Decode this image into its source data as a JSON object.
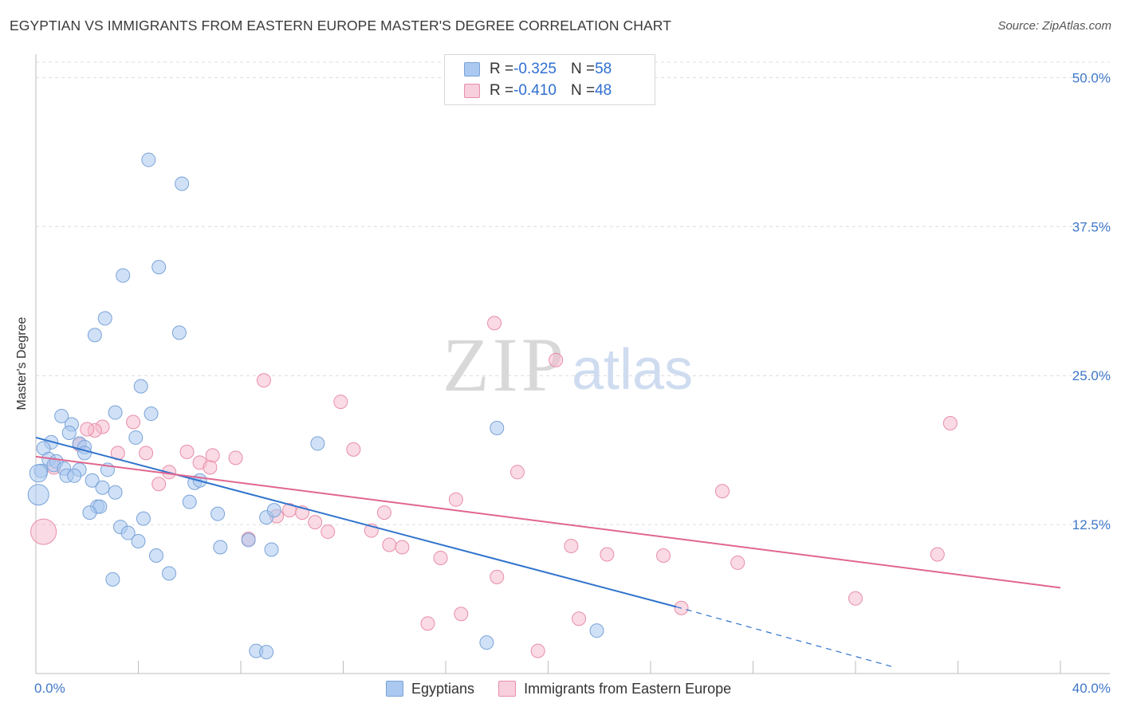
{
  "header": {
    "title": "EGYPTIAN VS IMMIGRANTS FROM EASTERN EUROPE MASTER'S DEGREE CORRELATION CHART",
    "source": "Source: ZipAtlas.com"
  },
  "watermark": {
    "zip": "ZIP",
    "atlas": "atlas"
  },
  "legend": {
    "rows": [
      {
        "r_label": "R = ",
        "r_value": "-0.325",
        "n_label": "N = ",
        "n_value": "58"
      },
      {
        "r_label": "R = ",
        "r_value": "-0.410",
        "n_label": "N = ",
        "n_value": "48"
      }
    ]
  },
  "colors": {
    "blue_fill": "#aac8f0",
    "blue_stroke": "#7aa3d8",
    "blue_line": "#2f73cc",
    "pink_fill": "#f5bccd",
    "pink_stroke": "#e88ea8",
    "pink_line": "#e0668e",
    "tick_label": "#3f78c9",
    "grid": "#dcdcdc"
  },
  "chart_data": {
    "type": "scatter",
    "title": "EGYPTIAN VS IMMIGRANTS FROM EASTERN EUROPE MASTER'S DEGREE CORRELATION CHART",
    "xlabel": "",
    "ylabel": "Master's Degree",
    "xlim": [
      0,
      40
    ],
    "ylim": [
      0,
      50
    ],
    "x_tick_labels": [
      "0.0%",
      "40.0%"
    ],
    "y_ticks": [
      12.5,
      25.0,
      37.5,
      50.0
    ],
    "y_tick_labels": [
      "12.5%",
      "25.0%",
      "37.5%",
      "50.0%"
    ],
    "grid": true,
    "legend_position": "top-center",
    "series": [
      {
        "name": "Egyptians",
        "r": -0.325,
        "n": 58,
        "trend": {
          "x": [
            0,
            25
          ],
          "y": [
            19.8,
            5.6
          ],
          "dashed_to": [
            33.4,
            0.6
          ]
        },
        "points": [
          [
            4.4,
            43.1
          ],
          [
            5.7,
            41.1
          ],
          [
            4.8,
            34.1
          ],
          [
            3.4,
            33.4
          ],
          [
            2.7,
            29.8
          ],
          [
            2.3,
            28.4
          ],
          [
            5.6,
            28.6
          ],
          [
            4.1,
            24.1
          ],
          [
            3.1,
            21.9
          ],
          [
            4.5,
            21.8
          ],
          [
            1.0,
            21.6
          ],
          [
            1.4,
            20.9
          ],
          [
            1.3,
            20.2
          ],
          [
            0.6,
            19.4
          ],
          [
            1.7,
            19.3
          ],
          [
            1.9,
            19.0
          ],
          [
            0.3,
            18.9
          ],
          [
            3.9,
            19.8
          ],
          [
            0.5,
            18.0
          ],
          [
            0.8,
            17.8
          ],
          [
            1.9,
            18.5
          ],
          [
            0.7,
            17.5
          ],
          [
            1.1,
            17.2
          ],
          [
            1.7,
            17.1
          ],
          [
            2.8,
            17.1
          ],
          [
            0.2,
            17.0
          ],
          [
            1.2,
            16.6
          ],
          [
            1.5,
            16.6
          ],
          [
            2.2,
            16.2
          ],
          [
            6.2,
            16.0
          ],
          [
            6.4,
            16.2
          ],
          [
            2.6,
            15.6
          ],
          [
            3.1,
            15.2
          ],
          [
            0.1,
            15.0
          ],
          [
            6.0,
            14.4
          ],
          [
            2.4,
            14.0
          ],
          [
            2.5,
            14.0
          ],
          [
            2.1,
            13.5
          ],
          [
            7.1,
            13.4
          ],
          [
            4.2,
            13.0
          ],
          [
            9.0,
            13.1
          ],
          [
            9.3,
            13.7
          ],
          [
            11.0,
            19.3
          ],
          [
            3.3,
            12.3
          ],
          [
            3.6,
            11.8
          ],
          [
            4.0,
            11.1
          ],
          [
            8.3,
            11.2
          ],
          [
            7.2,
            10.6
          ],
          [
            9.2,
            10.4
          ],
          [
            4.7,
            9.9
          ],
          [
            5.2,
            8.4
          ],
          [
            3.0,
            7.9
          ],
          [
            18.0,
            20.6
          ],
          [
            21.9,
            3.6
          ],
          [
            8.6,
            1.9
          ],
          [
            9.0,
            1.8
          ],
          [
            17.6,
            2.6
          ],
          [
            0.1,
            16.8
          ]
        ]
      },
      {
        "name": "Immigrants from Eastern Europe",
        "r": -0.41,
        "n": 48,
        "trend": {
          "x": [
            0,
            40
          ],
          "y": [
            18.2,
            7.2
          ]
        },
        "points": [
          [
            17.9,
            29.4
          ],
          [
            20.3,
            26.3
          ],
          [
            8.9,
            24.6
          ],
          [
            11.9,
            22.8
          ],
          [
            3.8,
            21.1
          ],
          [
            35.7,
            21.0
          ],
          [
            2.6,
            20.7
          ],
          [
            2.3,
            20.4
          ],
          [
            2.0,
            20.5
          ],
          [
            1.7,
            19.2
          ],
          [
            12.4,
            18.8
          ],
          [
            3.2,
            18.5
          ],
          [
            4.3,
            18.5
          ],
          [
            5.9,
            18.6
          ],
          [
            6.9,
            18.3
          ],
          [
            7.8,
            18.1
          ],
          [
            6.4,
            17.7
          ],
          [
            6.8,
            17.3
          ],
          [
            0.7,
            17.3
          ],
          [
            5.2,
            16.9
          ],
          [
            18.8,
            16.9
          ],
          [
            4.8,
            15.9
          ],
          [
            26.8,
            15.3
          ],
          [
            16.4,
            14.6
          ],
          [
            9.9,
            13.7
          ],
          [
            10.4,
            13.5
          ],
          [
            13.6,
            13.5
          ],
          [
            9.4,
            13.2
          ],
          [
            10.9,
            12.7
          ],
          [
            13.1,
            12.0
          ],
          [
            11.4,
            11.9
          ],
          [
            8.3,
            11.3
          ],
          [
            13.8,
            10.8
          ],
          [
            14.3,
            10.6
          ],
          [
            20.9,
            10.7
          ],
          [
            22.3,
            10.0
          ],
          [
            24.5,
            9.9
          ],
          [
            35.2,
            10.0
          ],
          [
            27.4,
            9.3
          ],
          [
            15.8,
            9.7
          ],
          [
            18.0,
            8.1
          ],
          [
            32.0,
            6.3
          ],
          [
            25.2,
            5.5
          ],
          [
            21.2,
            4.6
          ],
          [
            16.6,
            5.0
          ],
          [
            15.3,
            4.2
          ],
          [
            19.6,
            1.9
          ],
          [
            0.3,
            11.9
          ]
        ]
      }
    ]
  },
  "bottom_legend": [
    {
      "label": "Egyptians"
    },
    {
      "label": "Immigrants from Eastern Europe"
    }
  ]
}
